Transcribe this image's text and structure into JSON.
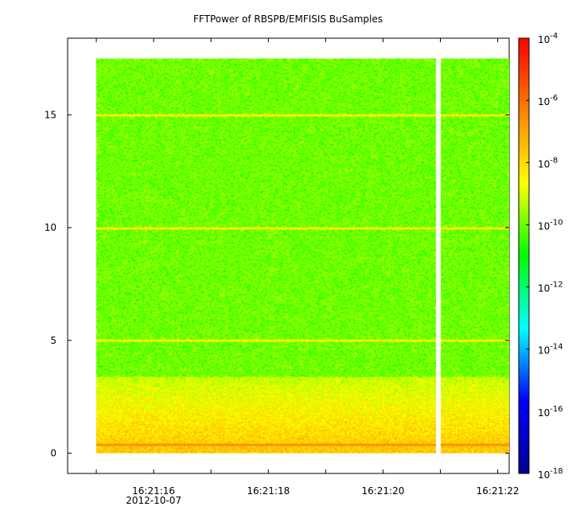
{
  "chart_data": {
    "type": "heatmap",
    "title": "FFTPower of RBSPB/EMFISIS  BuSamples",
    "xlabel": "",
    "ylabel": "",
    "x_ticks": [
      {
        "t": 16.0,
        "label": "16:21:16",
        "sublabel": "2012-10-07"
      },
      {
        "t": 18.0,
        "label": "16:21:18"
      },
      {
        "t": 20.0,
        "label": "16:21:20"
      },
      {
        "t": 22.0,
        "label": "16:21:22"
      }
    ],
    "x_minor_ticks": [
      15.0,
      17.0,
      19.0,
      21.0
    ],
    "xlim": [
      14.5,
      22.2
    ],
    "ylim": [
      -0.9,
      18.4
    ],
    "y_ticks": [
      0,
      5,
      10,
      15
    ],
    "data_extent": {
      "x_start": 15.0,
      "x_end": 22.2,
      "y_min": 0,
      "y_max": 17.5
    },
    "gap": {
      "x_start": 20.93,
      "x_end": 21.01
    },
    "bands": [
      {
        "y_from": 0,
        "y_to": 3.4,
        "level": "high",
        "log10_power": -7.6
      },
      {
        "y_from": 3.4,
        "y_to": 17.5,
        "level": "background",
        "log10_power": -10.0
      }
    ],
    "lines": [
      {
        "y": 5.0,
        "log10_power": -8.3
      },
      {
        "y": 10.0,
        "log10_power": -8.3
      },
      {
        "y": 15.0,
        "log10_power": -8.3
      },
      {
        "y": 0.4,
        "log10_power": -6.6
      }
    ],
    "colorbar": {
      "scale": "log",
      "range": [
        1e-18,
        0.0001
      ],
      "ticks": [
        {
          "base": "10",
          "exp": "-4"
        },
        {
          "base": "10",
          "exp": "-6"
        },
        {
          "base": "10",
          "exp": "-8"
        },
        {
          "base": "10",
          "exp": "-10"
        },
        {
          "base": "10",
          "exp": "-12"
        },
        {
          "base": "10",
          "exp": "-14"
        },
        {
          "base": "10",
          "exp": "-16"
        },
        {
          "base": "10",
          "exp": "-18"
        }
      ],
      "colors": [
        "#000090",
        "#0000ff",
        "#00ffff",
        "#00ff00",
        "#ffff00",
        "#ff8000",
        "#ff0000"
      ]
    }
  }
}
